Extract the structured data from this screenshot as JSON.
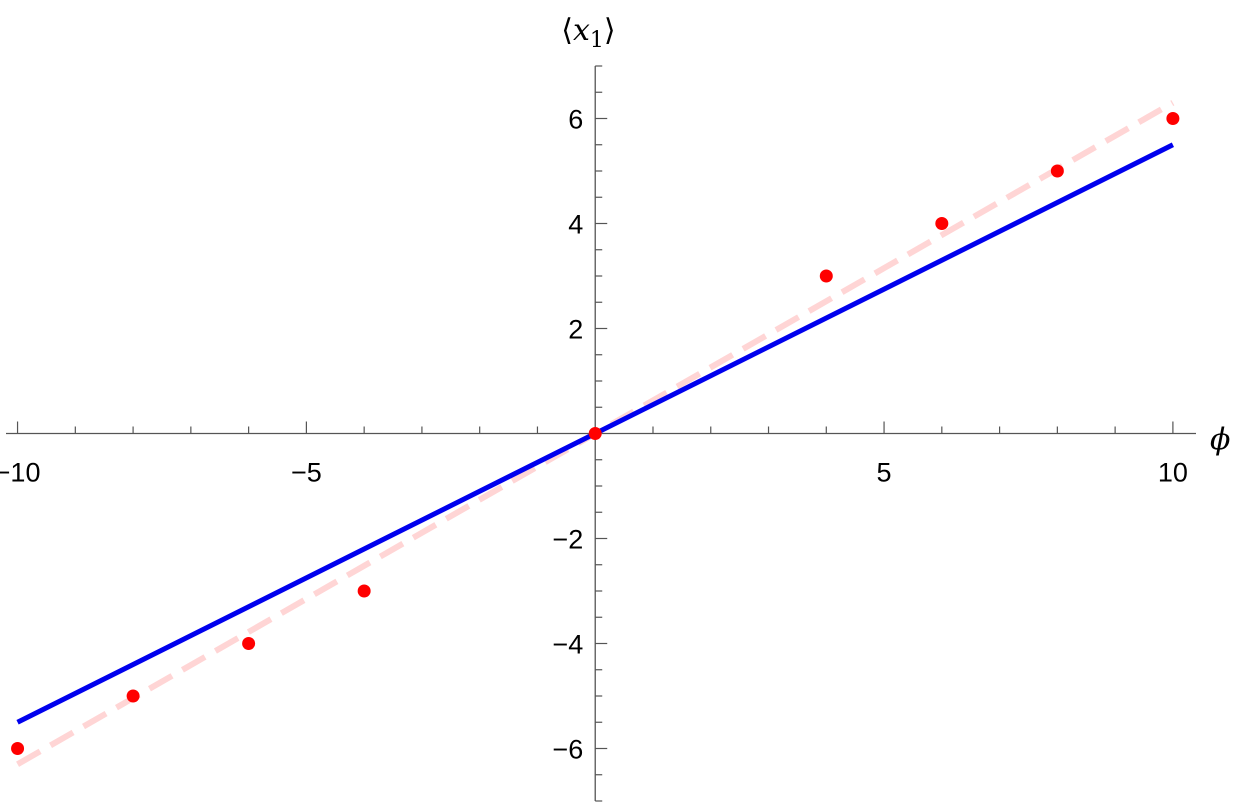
{
  "chart_data": {
    "type": "scatter",
    "xlabel": "ϕ",
    "ylabel": "⟨x1⟩",
    "ylabel_parts": {
      "open": "⟨",
      "symbol": "x",
      "subscript": "1",
      "close": "⟩"
    },
    "xlim": [
      -10.2,
      10.4
    ],
    "ylim": [
      -7,
      7
    ],
    "x_major_ticks": [
      -10,
      -5,
      5,
      10
    ],
    "x_tick_labels": [
      "−10",
      "−5",
      "5",
      "10"
    ],
    "x_minor_step": 1,
    "y_major_ticks": [
      -6,
      -4,
      -2,
      2,
      4,
      6
    ],
    "y_tick_labels": [
      "−6",
      "−4",
      "−2",
      "2",
      "4",
      "6"
    ],
    "y_minor_step": 0.5,
    "grid": false,
    "series": [
      {
        "kind": "points",
        "color": "#ff0000",
        "x": [
          -10,
          -8,
          -6,
          -4,
          0,
          4,
          6,
          8,
          10
        ],
        "y": [
          -6,
          -5,
          -4,
          -3,
          0,
          3,
          4,
          5,
          6
        ]
      },
      {
        "kind": "line",
        "style": "solid",
        "color": "#0000ee",
        "x": [
          -10,
          10
        ],
        "y": [
          -5.5,
          5.5
        ]
      },
      {
        "kind": "line",
        "style": "dashed",
        "color": "#ffd5d5",
        "x": [
          -10,
          10
        ],
        "y": [
          -6.3,
          6.3
        ]
      }
    ]
  }
}
